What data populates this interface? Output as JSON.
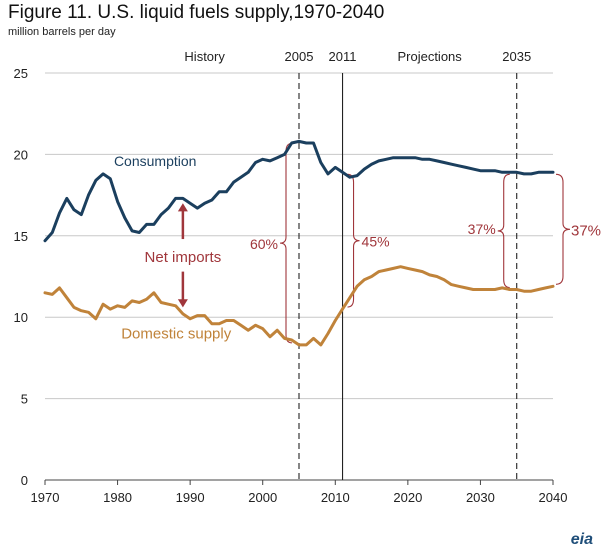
{
  "chart_data": {
    "type": "line",
    "title": "Figure 11. U.S. liquid fuels supply,1970-2040",
    "subtitle": "million barrels per day",
    "xlim": [
      1970,
      2040
    ],
    "ylim": [
      0,
      25
    ],
    "x_ticks": [
      "1970",
      "1980",
      "1990",
      "2000",
      "2010",
      "2020",
      "2030",
      "2040"
    ],
    "y_ticks": [
      "0",
      "5",
      "10",
      "15",
      "20",
      "25"
    ],
    "grid": true,
    "series": [
      {
        "name": "Consumption",
        "color": "#1b3f5e",
        "x": [
          1970,
          1971,
          1972,
          1973,
          1974,
          1975,
          1976,
          1977,
          1978,
          1979,
          1980,
          1981,
          1982,
          1983,
          1984,
          1985,
          1986,
          1987,
          1988,
          1989,
          1990,
          1991,
          1992,
          1993,
          1994,
          1995,
          1996,
          1997,
          1998,
          1999,
          2000,
          2001,
          2002,
          2003,
          2004,
          2005,
          2006,
          2007,
          2008,
          2009,
          2010,
          2011,
          2012,
          2013,
          2014,
          2015,
          2016,
          2017,
          2018,
          2019,
          2020,
          2021,
          2022,
          2023,
          2024,
          2025,
          2026,
          2027,
          2028,
          2029,
          2030,
          2031,
          2032,
          2033,
          2034,
          2035,
          2036,
          2037,
          2038,
          2039,
          2040
        ],
        "values": [
          14.7,
          15.2,
          16.4,
          17.3,
          16.6,
          16.3,
          17.5,
          18.4,
          18.8,
          18.5,
          17.1,
          16.1,
          15.3,
          15.2,
          15.7,
          15.7,
          16.3,
          16.7,
          17.3,
          17.3,
          17.0,
          16.7,
          17.0,
          17.2,
          17.7,
          17.7,
          18.3,
          18.6,
          18.9,
          19.5,
          19.7,
          19.6,
          19.8,
          20.0,
          20.7,
          20.8,
          20.7,
          20.7,
          19.5,
          18.8,
          19.2,
          18.9,
          18.6,
          18.7,
          19.1,
          19.4,
          19.6,
          19.7,
          19.8,
          19.8,
          19.8,
          19.8,
          19.7,
          19.7,
          19.6,
          19.5,
          19.4,
          19.3,
          19.2,
          19.1,
          19.0,
          19.0,
          19.0,
          18.9,
          18.9,
          18.9,
          18.8,
          18.8,
          18.9,
          18.9,
          18.9
        ]
      },
      {
        "name": "Domestic supply",
        "color": "#c0833a",
        "x": [
          1970,
          1971,
          1972,
          1973,
          1974,
          1975,
          1976,
          1977,
          1978,
          1979,
          1980,
          1981,
          1982,
          1983,
          1984,
          1985,
          1986,
          1987,
          1988,
          1989,
          1990,
          1991,
          1992,
          1993,
          1994,
          1995,
          1996,
          1997,
          1998,
          1999,
          2000,
          2001,
          2002,
          2003,
          2004,
          2005,
          2006,
          2007,
          2008,
          2009,
          2010,
          2011,
          2012,
          2013,
          2014,
          2015,
          2016,
          2017,
          2018,
          2019,
          2020,
          2021,
          2022,
          2023,
          2024,
          2025,
          2026,
          2027,
          2028,
          2029,
          2030,
          2031,
          2032,
          2033,
          2034,
          2035,
          2036,
          2037,
          2038,
          2039,
          2040
        ],
        "values": [
          11.5,
          11.4,
          11.8,
          11.2,
          10.6,
          10.4,
          10.3,
          9.9,
          10.8,
          10.5,
          10.7,
          10.6,
          11.0,
          10.9,
          11.1,
          11.5,
          10.9,
          10.8,
          10.7,
          10.2,
          9.9,
          10.1,
          10.1,
          9.6,
          9.6,
          9.8,
          9.8,
          9.5,
          9.2,
          9.5,
          9.3,
          8.8,
          9.2,
          8.7,
          8.6,
          8.3,
          8.3,
          8.7,
          8.3,
          9.0,
          9.8,
          10.5,
          11.2,
          11.9,
          12.3,
          12.5,
          12.8,
          12.9,
          13.0,
          13.1,
          13.0,
          12.9,
          12.8,
          12.6,
          12.5,
          12.3,
          12.0,
          11.9,
          11.8,
          11.7,
          11.7,
          11.7,
          11.7,
          11.8,
          11.7,
          11.7,
          11.6,
          11.6,
          11.7,
          11.8,
          11.9
        ]
      }
    ],
    "vertical_lines": [
      {
        "x": 2005,
        "label": "2005",
        "style": "dashed"
      },
      {
        "x": 2011,
        "label": "2011",
        "style": "solid"
      },
      {
        "x": 2035,
        "label": "2035",
        "style": "dashed"
      }
    ],
    "period_labels": [
      {
        "text": "History",
        "x": 1992
      },
      {
        "text": "Projections",
        "x": 2023
      }
    ],
    "annotations": {
      "net_imports": "Net imports",
      "pct_2005": "60%",
      "pct_2011": "45%",
      "pct_2035_left": "37%",
      "pct_2035_right": "37%"
    },
    "annotation_color": "#a0363b"
  },
  "logo_text": "eia"
}
